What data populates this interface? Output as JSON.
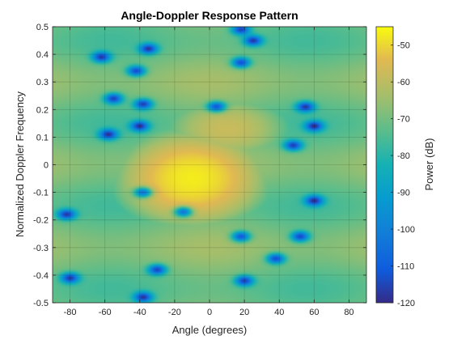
{
  "chart_data": {
    "type": "heatmap",
    "title": "Angle-Doppler Response Pattern",
    "xlabel": "Angle (degrees)",
    "ylabel": "Normalized Doppler Frequency",
    "xlim": [
      -90,
      90
    ],
    "ylim": [
      -0.5,
      0.5
    ],
    "x_ticks": [
      -80,
      -60,
      -40,
      -20,
      0,
      20,
      40,
      60,
      80
    ],
    "y_ticks": [
      -0.5,
      -0.4,
      -0.3,
      -0.2,
      -0.1,
      0,
      0.1,
      0.2,
      0.3,
      0.4,
      0.5
    ],
    "grid": true,
    "colormap": "parula",
    "colorbar": {
      "label": "Power (dB)",
      "range": [
        -120,
        -45
      ],
      "ticks": [
        -120,
        -110,
        -100,
        -90,
        -80,
        -70,
        -60,
        -50
      ]
    },
    "peak": {
      "x": -10,
      "y": -0.05,
      "value": -47
    },
    "secondary_peak": {
      "x": 10,
      "y": 0.13,
      "value": -58
    },
    "nulls": [
      {
        "x": -62,
        "y": 0.39
      },
      {
        "x": -42,
        "y": 0.34
      },
      {
        "x": -35,
        "y": 0.42
      },
      {
        "x": 18,
        "y": 0.49
      },
      {
        "x": 25,
        "y": 0.45
      },
      {
        "x": 18,
        "y": 0.37
      },
      {
        "x": -55,
        "y": 0.24
      },
      {
        "x": -38,
        "y": 0.22
      },
      {
        "x": 4,
        "y": 0.21
      },
      {
        "x": 55,
        "y": 0.21
      },
      {
        "x": -58,
        "y": 0.11
      },
      {
        "x": -40,
        "y": 0.14
      },
      {
        "x": 48,
        "y": 0.07
      },
      {
        "x": 60,
        "y": 0.14
      },
      {
        "x": -38,
        "y": -0.1
      },
      {
        "x": -15,
        "y": -0.17
      },
      {
        "x": 60,
        "y": -0.13
      },
      {
        "x": -82,
        "y": -0.18
      },
      {
        "x": 52,
        "y": -0.26
      },
      {
        "x": 18,
        "y": -0.26
      },
      {
        "x": 38,
        "y": -0.34
      },
      {
        "x": 20,
        "y": -0.42
      },
      {
        "x": -80,
        "y": -0.41
      },
      {
        "x": -38,
        "y": -0.48
      },
      {
        "x": -30,
        "y": -0.38
      }
    ]
  }
}
